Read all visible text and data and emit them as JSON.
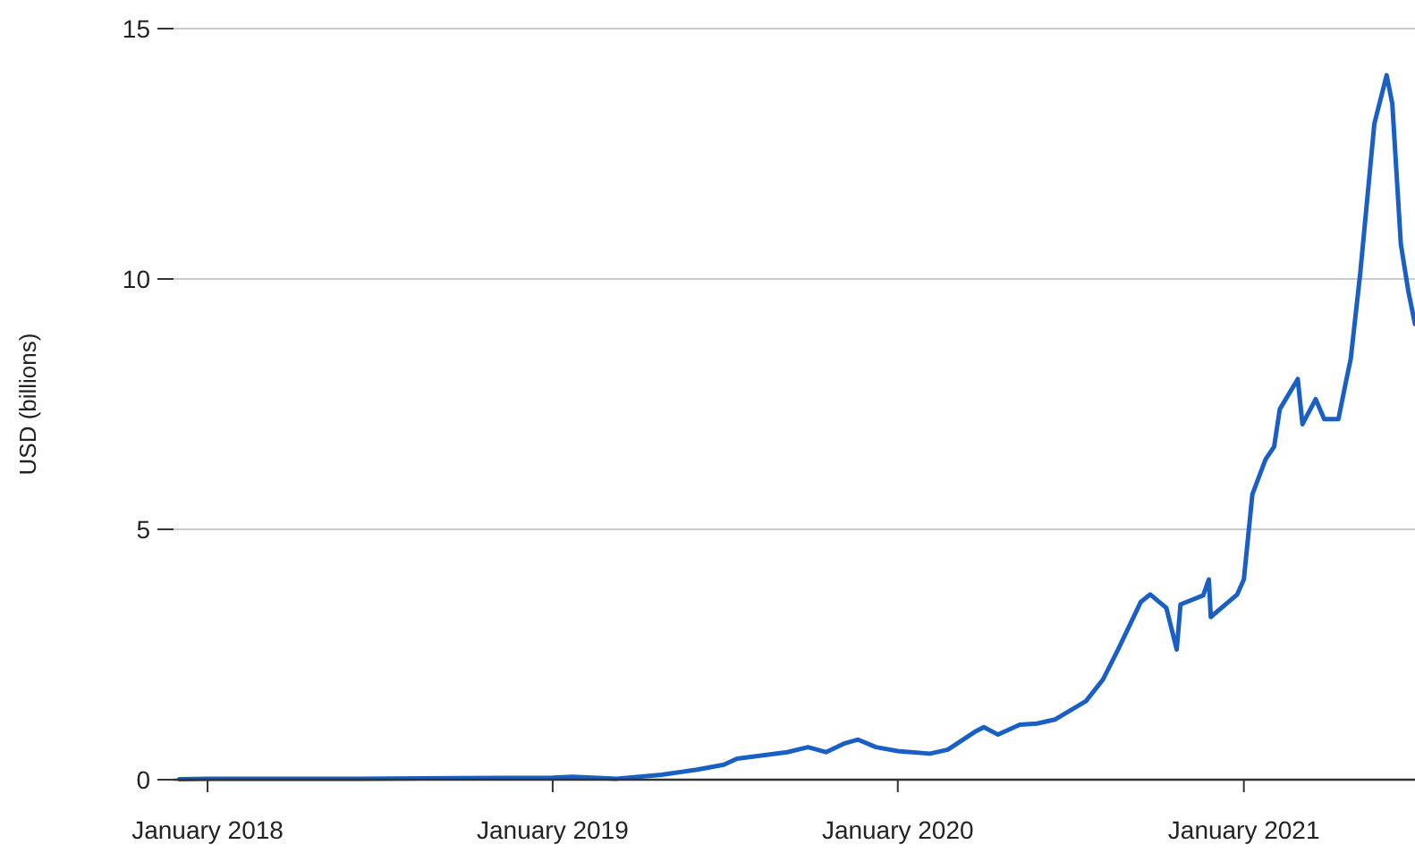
{
  "chart_data": {
    "type": "line",
    "ylabel": "USD (billions)",
    "xlim": [
      "2017-11-26",
      "2021-07-01"
    ],
    "xticks": [
      {
        "value": "2018-01-01",
        "label": "January 2018"
      },
      {
        "value": "2019-01-01",
        "label": "January 2019"
      },
      {
        "value": "2020-01-01",
        "label": "January 2020"
      },
      {
        "value": "2021-01-01",
        "label": "January 2021"
      }
    ],
    "ylim": [
      0,
      15
    ],
    "yticks": [
      0,
      5,
      10,
      15
    ],
    "grid": "y",
    "x": [
      "2017-12-02",
      "2018-01-01",
      "2018-06-09",
      "2019-01-01",
      "2019-01-22",
      "2019-03-10",
      "2019-04-26",
      "2019-06-03",
      "2019-07-01",
      "2019-07-15",
      "2019-09-06",
      "2019-09-28",
      "2019-10-17",
      "2019-11-05",
      "2019-11-20",
      "2019-12-09",
      "2020-01-01",
      "2020-02-04",
      "2020-02-23",
      "2020-03-22",
      "2020-04-01",
      "2020-04-16",
      "2020-05-09",
      "2020-05-27",
      "2020-06-15",
      "2020-07-18",
      "2020-08-05",
      "2020-08-21",
      "2020-09-14",
      "2020-09-24",
      "2020-10-11",
      "2020-10-22",
      "2020-10-26",
      "2020-11-19",
      "2020-11-25",
      "2020-11-27",
      "2020-12-25",
      "2021-01-01",
      "2021-01-10",
      "2021-01-24",
      "2021-02-02",
      "2021-02-08",
      "2021-02-27",
      "2021-03-04",
      "2021-03-18",
      "2021-03-27",
      "2021-04-11",
      "2021-04-19",
      "2021-04-24",
      "2021-05-04",
      "2021-05-19",
      "2021-06-01",
      "2021-06-07",
      "2021-06-16",
      "2021-06-24",
      "2021-07-01"
    ],
    "series": [
      {
        "color": "#1a5fc4",
        "values": [
          0.01,
          0.02,
          0.02,
          0.04,
          0.06,
          0.02,
          0.1,
          0.2,
          0.3,
          0.42,
          0.55,
          0.65,
          0.55,
          0.72,
          0.8,
          0.65,
          0.57,
          0.52,
          0.6,
          0.95,
          1.05,
          0.9,
          1.1,
          1.12,
          1.2,
          1.57,
          2.0,
          2.6,
          3.55,
          3.7,
          3.43,
          2.6,
          3.5,
          3.68,
          4.0,
          3.25,
          3.7,
          4.0,
          5.7,
          6.4,
          6.65,
          7.4,
          8.0,
          7.1,
          7.6,
          7.2,
          7.2,
          7.95,
          8.4,
          10.1,
          13.1,
          14.07,
          13.5,
          10.7,
          9.75,
          9.1
        ]
      }
    ]
  }
}
